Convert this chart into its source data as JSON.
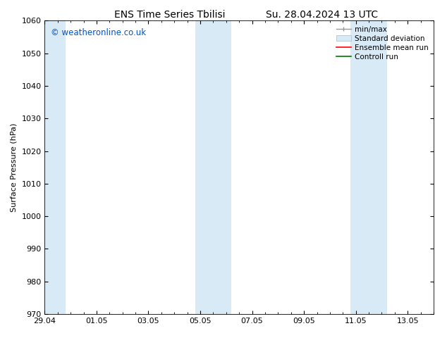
{
  "title_left": "ENS Time Series Tbilisi",
  "title_right": "Su. 28.04.2024 13 UTC",
  "ylabel": "Surface Pressure (hPa)",
  "ylim": [
    970,
    1060
  ],
  "yticks": [
    970,
    980,
    990,
    1000,
    1010,
    1020,
    1030,
    1040,
    1050,
    1060
  ],
  "xlim": [
    0,
    15
  ],
  "xtick_labels": [
    "29.04",
    "01.05",
    "03.05",
    "05.05",
    "07.05",
    "09.05",
    "11.05",
    "13.05"
  ],
  "xtick_positions": [
    0,
    2,
    4,
    6,
    8,
    10,
    12,
    14
  ],
  "shaded_bands": [
    {
      "x_start": 0.0,
      "x_end": 0.8,
      "color": "#d9eaf7"
    },
    {
      "x_start": 5.8,
      "x_end": 7.2,
      "color": "#d9eaf7"
    },
    {
      "x_start": 11.8,
      "x_end": 13.2,
      "color": "#d9eaf7"
    }
  ],
  "watermark_text": "© weatheronline.co.uk",
  "watermark_color": "#0055cc",
  "legend_items": [
    {
      "label": "min/max",
      "color": "#999999"
    },
    {
      "label": "Standard deviation",
      "color": "#ccddee"
    },
    {
      "label": "Ensemble mean run",
      "color": "#ff0000"
    },
    {
      "label": "Controll run",
      "color": "#007700"
    }
  ],
  "bg_color": "#ffffff",
  "plot_bg_color": "#ffffff",
  "title_fontsize": 10,
  "axis_label_fontsize": 8,
  "tick_fontsize": 8,
  "legend_fontsize": 7.5,
  "watermark_fontsize": 8.5
}
